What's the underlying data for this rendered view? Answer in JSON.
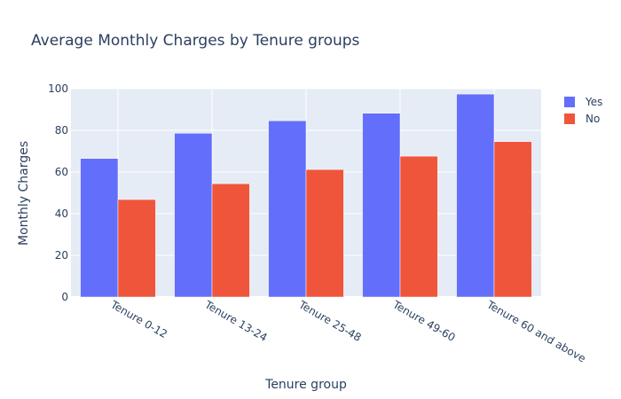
{
  "chart_data": {
    "type": "bar",
    "title": "Average Monthly Charges by Tenure groups",
    "xlabel": "Tenure group",
    "ylabel": "Monthly Charges",
    "categories": [
      "Tenure 0-12",
      "Tenure 13-24",
      "Tenure 25-48",
      "Tenure 49-60",
      "Tenure 60 and above"
    ],
    "series": [
      {
        "name": "Yes",
        "color": "#636efa",
        "values": [
          66.5,
          78.6,
          84.6,
          88.2,
          97.4
        ]
      },
      {
        "name": "No",
        "color": "#ef553b",
        "values": [
          46.8,
          54.4,
          61.2,
          67.6,
          74.6
        ]
      }
    ],
    "ylim": [
      0,
      100
    ],
    "yticks": [
      0,
      20,
      40,
      60,
      80,
      100
    ],
    "grid": true,
    "legend_position": "top-right",
    "plot_background": "#e5ecf6"
  }
}
